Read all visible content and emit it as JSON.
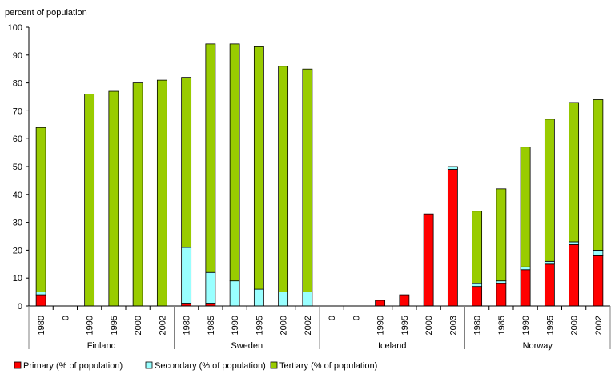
{
  "chart_data": {
    "type": "bar",
    "stacked": true,
    "ylabel": "percent of population",
    "ylim": [
      0,
      100
    ],
    "ytick_step": 10,
    "groups": [
      {
        "name": "Finland",
        "years": [
          "1980",
          "0",
          "1990",
          "1995",
          "2000",
          "2002"
        ]
      },
      {
        "name": "Sweden",
        "years": [
          "1980",
          "1985",
          "1990",
          "1995",
          "2000",
          "2002"
        ]
      },
      {
        "name": "Iceland",
        "years": [
          "0",
          "0",
          "1990",
          "1995",
          "2000",
          "2003"
        ]
      },
      {
        "name": "Norway",
        "years": [
          "1980",
          "1985",
          "1990",
          "1995",
          "2000",
          "2002"
        ]
      }
    ],
    "series": [
      {
        "name": "Primary (% of population)",
        "color": "#ff0000",
        "values": [
          4,
          0,
          0,
          0,
          0,
          0,
          1,
          1,
          0,
          0,
          0,
          0,
          0,
          0,
          2,
          4,
          33,
          49,
          7,
          8,
          13,
          15,
          22,
          18
        ]
      },
      {
        "name": "Secondary (% of population)",
        "color": "#99ffff",
        "values": [
          1,
          0,
          0,
          0,
          0,
          0,
          20,
          11,
          9,
          6,
          5,
          5,
          0,
          0,
          0,
          0,
          0,
          1,
          1,
          1,
          1,
          1,
          1,
          2
        ]
      },
      {
        "name": "Tertiary (% of population)",
        "color": "#99cc00",
        "values": [
          59,
          0,
          76,
          77,
          80,
          81,
          61,
          82,
          85,
          87,
          81,
          80,
          0,
          0,
          0,
          0,
          0,
          0,
          26,
          33,
          43,
          51,
          50,
          54
        ]
      }
    ]
  }
}
